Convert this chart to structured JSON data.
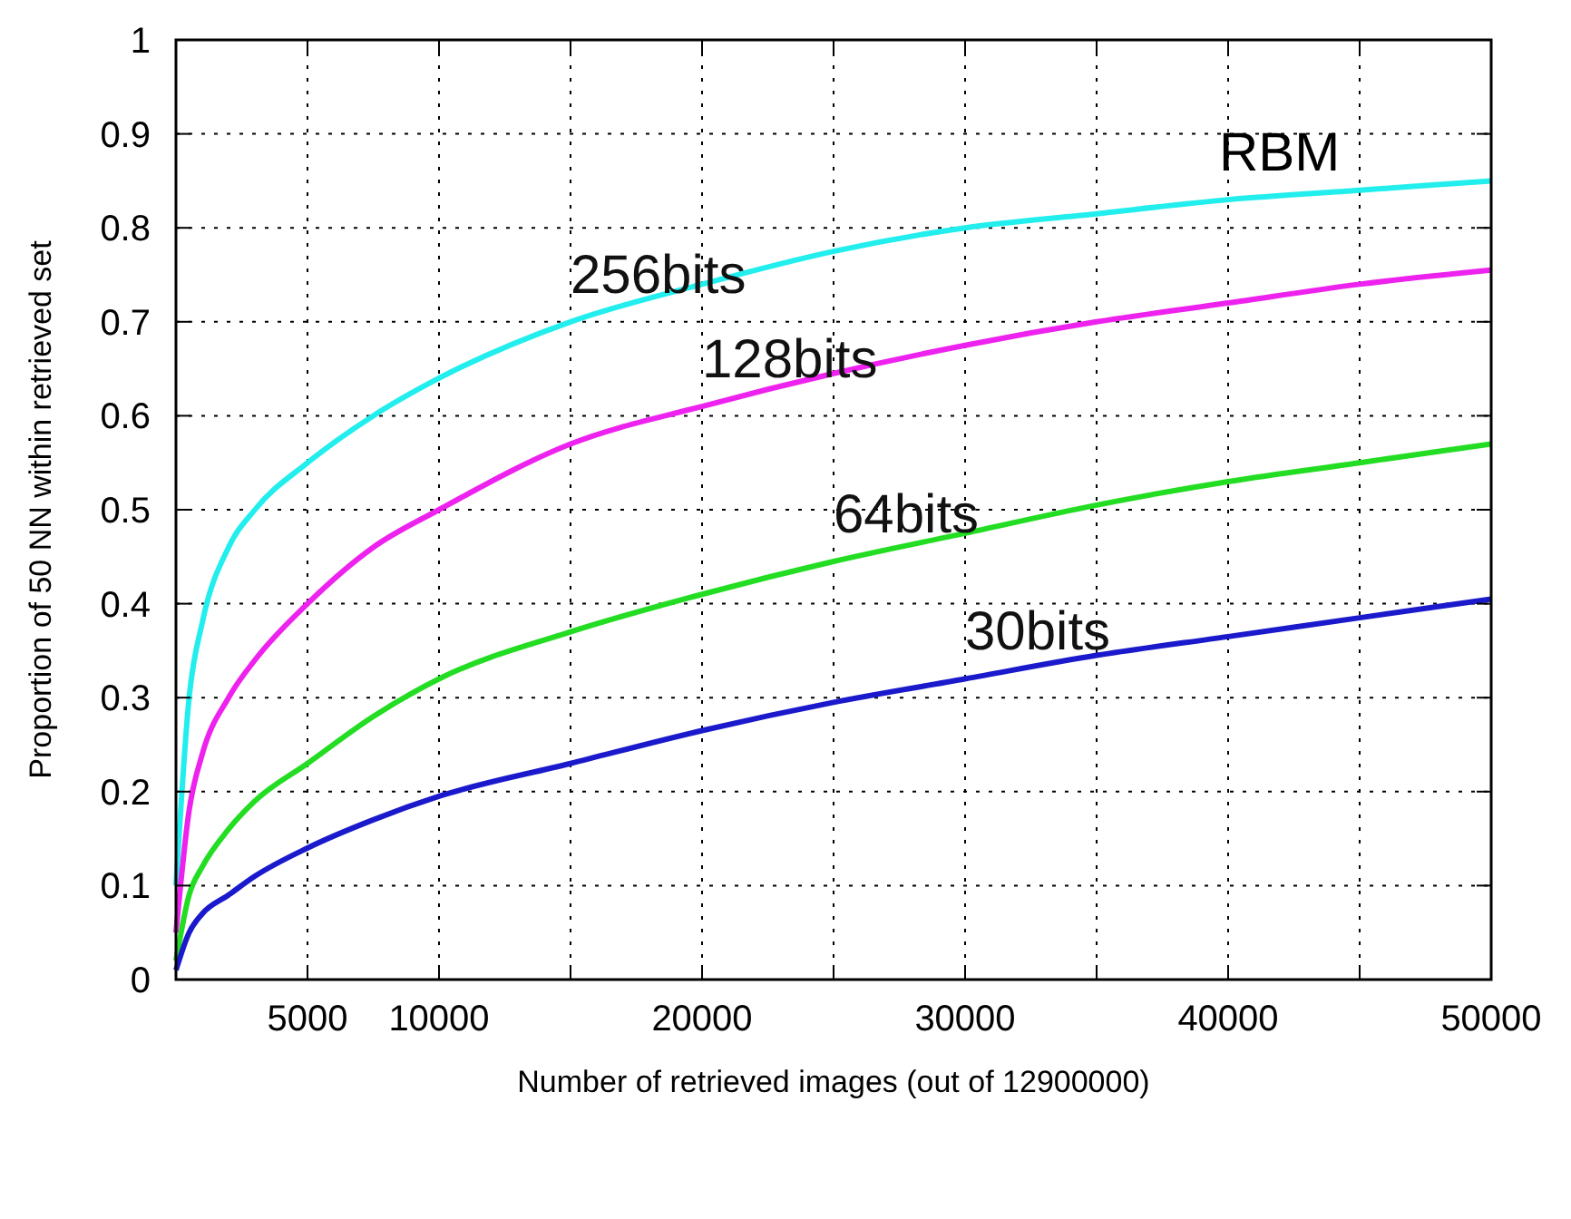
{
  "chart_data": {
    "type": "line",
    "xlabel": "Number of retrieved images (out of 12900000)",
    "ylabel": "Proportion of 50 NN within retrieved set",
    "annotations": [
      "RBM"
    ],
    "x": [
      0,
      500,
      1000,
      2000,
      3000,
      5000,
      7500,
      10000,
      15000,
      20000,
      25000,
      30000,
      35000,
      40000,
      45000,
      50000
    ],
    "series": [
      {
        "name": "256bits",
        "color": "#22eeee",
        "values": [
          0.1,
          0.3,
          0.38,
          0.46,
          0.5,
          0.55,
          0.6,
          0.64,
          0.7,
          0.74,
          0.775,
          0.8,
          0.815,
          0.83,
          0.84,
          0.85
        ]
      },
      {
        "name": "128bits",
        "color": "#ee22ee",
        "values": [
          0.05,
          0.18,
          0.24,
          0.3,
          0.34,
          0.4,
          0.46,
          0.5,
          0.57,
          0.61,
          0.645,
          0.675,
          0.7,
          0.72,
          0.74,
          0.755
        ]
      },
      {
        "name": "64bits",
        "color": "#22dd22",
        "values": [
          0.02,
          0.09,
          0.12,
          0.16,
          0.19,
          0.23,
          0.28,
          0.32,
          0.37,
          0.41,
          0.445,
          0.475,
          0.505,
          0.53,
          0.55,
          0.57
        ]
      },
      {
        "name": "30bits",
        "color": "#1a1acc",
        "values": [
          0.01,
          0.05,
          0.07,
          0.09,
          0.11,
          0.14,
          0.17,
          0.195,
          0.23,
          0.265,
          0.295,
          0.32,
          0.345,
          0.365,
          0.385,
          0.405
        ]
      }
    ],
    "xlim": [
      0,
      50000
    ],
    "xticks": [
      {
        "value": 0,
        "label": null
      },
      5000,
      10000,
      {
        "value": 15000,
        "label": null
      },
      20000,
      {
        "value": 25000,
        "label": null
      },
      30000,
      {
        "value": 35000,
        "label": null
      },
      40000,
      {
        "value": 45000,
        "label": null
      },
      50000
    ],
    "ylim": [
      0,
      1
    ],
    "yticks": [
      0,
      0.1,
      0.2,
      0.3,
      0.4,
      0.5,
      0.6,
      0.7,
      0.8,
      0.9,
      1
    ],
    "grid": true,
    "marker": "none",
    "line_style": "solid"
  }
}
